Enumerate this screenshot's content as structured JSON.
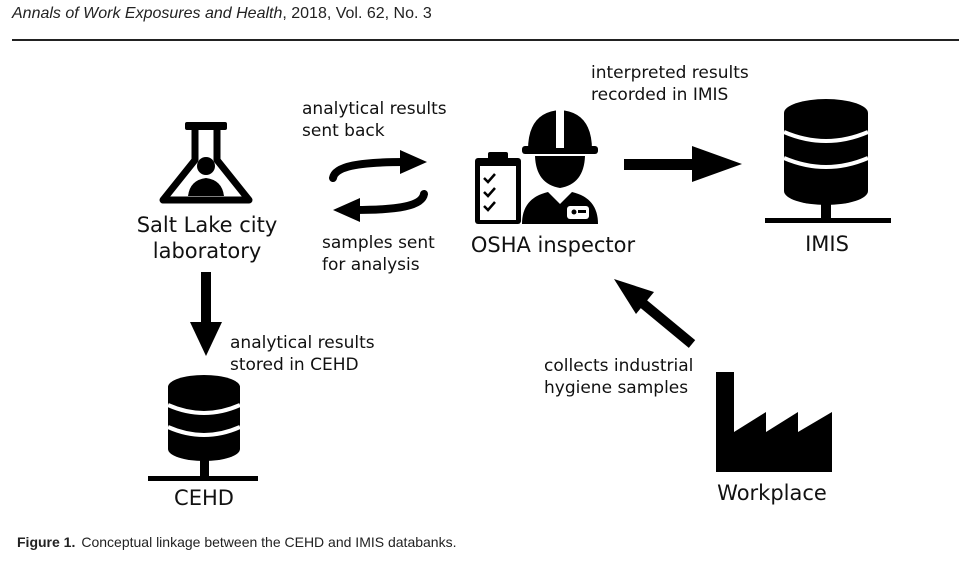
{
  "header": {
    "journal": "Annals of Work Exposures and Health",
    "citation": ", 2018, Vol. 62, No. 3"
  },
  "nodes": {
    "lab_line1": "Salt Lake city",
    "lab_line2": "laboratory",
    "osha": "OSHA inspector",
    "imis": "IMIS",
    "cehd": "CEHD",
    "workplace": "Workplace"
  },
  "edges": {
    "sent_back_line1": "analytical results",
    "sent_back_line2": "sent back",
    "samples_line1": "samples sent",
    "samples_line2": "for analysis",
    "recorded_line1": "interpreted results",
    "recorded_line2": "recorded in IMIS",
    "stored_line1": "analytical results",
    "stored_line2": "stored in CEHD",
    "collects_line1": "collects industrial",
    "collects_line2": "hygiene samples"
  },
  "caption": {
    "figure_label": "Figure 1.",
    "text": "Conceptual linkage between the CEHD and IMIS databanks."
  }
}
